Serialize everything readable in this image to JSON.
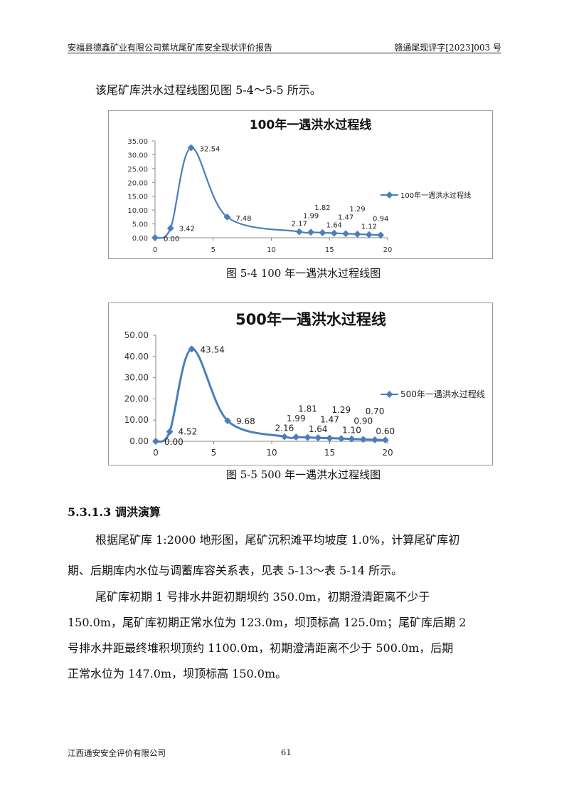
{
  "header": {
    "left": "安福县德鑫矿业有限公司蕉坑尾矿库安全现状评价报告",
    "right": "赣通尾现评字[2023]003 号"
  },
  "intro": "该尾矿库洪水过程线图见图 5-4～5-5 所示。",
  "captions": [
    "图 5-4   100 年一遇洪水过程线图",
    "图 5-5   500 年一遇洪水过程线图"
  ],
  "section_heading": "5.3.1.3 调洪演算",
  "paragraphs": [
    "根据尾矿库 1:2000 地形图，尾矿沉积滩平均坡度 1.0%，计算尾矿库初",
    "期、后期库内水位与调蓄库容关系表，见表 5-13～表 5-14 所示。",
    "尾矿库初期 1 号排水井距初期坝约 350.0m，初期澄清距离不少于",
    "150.0m，尾矿库初期正常水位为 123.0m，坝顶标高 125.0m；尾矿库后期 2",
    "号排水井距最终堆积坝顶约 1100.0m，初期澄清距离不少于 500.0m，后期",
    "正常水位为 147.0m，坝顶标高 150.0m。"
  ],
  "footer": {
    "left": "江西通安安全评价有限公司",
    "page": "61"
  },
  "chart_data": [
    {
      "type": "line",
      "title": "100年一遇洪水过程线",
      "legend": "100年一遇洪水过程线",
      "legend_position": "right",
      "color": "#4a7ebb",
      "xlim": [
        0,
        20
      ],
      "ylim": [
        0,
        35
      ],
      "xticks": [
        0,
        5,
        10,
        15,
        20
      ],
      "yticks": [
        "0.00",
        "5.00",
        "10.00",
        "15.00",
        "20.00",
        "25.00",
        "30.00",
        "35.00"
      ],
      "grid": false,
      "x": [
        0,
        1.33,
        3.1,
        6.2,
        12.4,
        13.4,
        14.4,
        15.4,
        16.4,
        17.4,
        18.4,
        19.4
      ],
      "y": [
        0,
        3.42,
        32.54,
        7.48,
        2.17,
        1.99,
        1.82,
        1.64,
        1.47,
        1.29,
        1.12,
        0.94
      ],
      "labels": [
        "0.00",
        "3.42",
        "32.54",
        "7.48",
        "2.17",
        "1.99",
        "1.82",
        "1.64",
        "1.47",
        "1.29",
        "1.12",
        "0.94"
      ]
    },
    {
      "type": "line",
      "title": "500年一遇洪水过程线",
      "legend": "500年一遇洪水过程线",
      "legend_position": "right",
      "color": "#4a7ebb",
      "xlim": [
        0,
        20
      ],
      "ylim": [
        0,
        50
      ],
      "xticks": [
        0,
        5,
        10,
        15,
        20
      ],
      "yticks": [
        "0.00",
        "10.00",
        "20.00",
        "30.00",
        "40.00",
        "50.00"
      ],
      "grid": false,
      "x": [
        0,
        1.2,
        3.1,
        6.2,
        11.1,
        12.1,
        13.1,
        14.0,
        15.0,
        16.0,
        16.9,
        17.9,
        18.9,
        19.8
      ],
      "y": [
        0,
        4.52,
        43.54,
        9.68,
        2.16,
        1.99,
        1.81,
        1.64,
        1.47,
        1.29,
        1.1,
        0.9,
        0.7,
        0.6
      ],
      "labels": [
        "0.00",
        "4.52",
        "43.54",
        "9.68",
        "2.16",
        "1.99",
        "1.81",
        "1.64",
        "1.47",
        "1.29",
        "1.10",
        "0.90",
        "0.70",
        "0.60"
      ]
    }
  ]
}
